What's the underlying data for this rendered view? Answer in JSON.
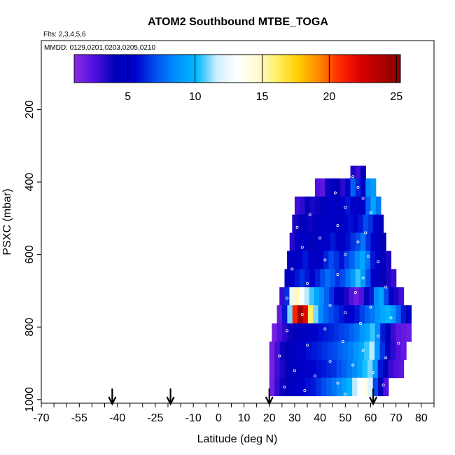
{
  "chart_data": {
    "type": "heatmap",
    "title": "ATOM2 Southbound MTBE_TOGA",
    "flights_label": "Flts: 2,3,4,5,6",
    "dates_label": "MMDD: 0129,0201,0203,0205,0210",
    "xlabel": "Latitude (deg N)",
    "ylabel": "PSXC (mbar)",
    "xlim": [
      -70,
      85
    ],
    "ylim": [
      1010,
      10
    ],
    "x_ticks": [
      -70,
      -55,
      -40,
      -25,
      -10,
      0,
      10,
      20,
      30,
      40,
      50,
      60,
      70,
      80
    ],
    "y_ticks": [
      200,
      400,
      600,
      800,
      1000
    ],
    "colorbar": {
      "min": 1,
      "max": 25.3,
      "ticks": [
        5,
        10,
        15,
        20,
        25
      ],
      "colors": [
        "#8a2be2",
        "#5010e0",
        "#0000b8",
        "#0000cc",
        "#0050f0",
        "#0090ff",
        "#00b8ff",
        "#d0eeff",
        "#ffffff",
        "#fffbd0",
        "#ffee60",
        "#ffcc00",
        "#ff8800",
        "#ff2a00",
        "#dd0000",
        "#b00000",
        "#8b0000"
      ]
    },
    "arrows_lat": [
      -42,
      -19,
      20,
      61
    ],
    "rows": [
      {
        "p": 380,
        "x0": 52,
        "x1": 58,
        "v": [
          3.5,
          2.8,
          4.2
        ]
      },
      {
        "p": 415,
        "x0": 38,
        "x1": 62,
        "v": [
          2.5,
          2.2,
          3.8,
          5.0,
          4.2,
          3.2,
          5.5,
          7.5,
          6.2,
          5.0,
          8.5,
          9.0
        ]
      },
      {
        "p": 465,
        "x0": 30,
        "x1": 64,
        "v": [
          2.8,
          3.2,
          4.0,
          3.5,
          3.8,
          4.2,
          5.0,
          4.8,
          4.5,
          5.5,
          6.0,
          5.2,
          4.8,
          5.5,
          7.5,
          9.5,
          8.0
        ]
      },
      {
        "p": 515,
        "x0": 29,
        "x1": 65,
        "v": [
          3.5,
          4.0,
          4.5,
          3.8,
          4.2,
          4.8,
          5.5,
          5.0,
          4.5,
          4.8,
          5.2,
          5.8,
          5.5,
          6.0,
          7.0,
          6.5,
          5.5,
          4.5
        ]
      },
      {
        "p": 565,
        "x0": 28,
        "x1": 66,
        "v": [
          3.2,
          4.5,
          5.0,
          4.5,
          4.0,
          4.8,
          5.2,
          5.5,
          6.0,
          5.5,
          5.0,
          5.8,
          6.5,
          7.0,
          8.0,
          6.5,
          5.5,
          4.8,
          4.0
        ]
      },
      {
        "p": 615,
        "x0": 27,
        "x1": 68,
        "v": [
          4.2,
          4.8,
          5.5,
          6.0,
          5.2,
          4.5,
          5.0,
          6.2,
          7.0,
          6.5,
          5.8,
          6.8,
          7.5,
          8.5,
          9.5,
          8.0,
          6.0,
          5.0,
          4.0,
          3.5
        ]
      },
      {
        "p": 665,
        "x0": 26,
        "x1": 70,
        "v": [
          4.5,
          5.0,
          6.0,
          6.5,
          6.0,
          5.5,
          6.2,
          7.0,
          7.8,
          7.2,
          6.5,
          7.0,
          8.0,
          9.0,
          10.5,
          9.0,
          7.0,
          5.5,
          4.5,
          4.0,
          3.5,
          3.0
        ]
      },
      {
        "p": 715,
        "x0": 24,
        "x1": 73,
        "v": [
          3.0,
          6.5,
          12.5,
          15.0,
          13.0,
          11.5,
          10.5,
          9.5,
          8.5,
          7.5,
          6.5,
          5.5,
          4.5,
          3.5,
          2.5,
          1.8,
          2.5,
          4.0,
          6.0,
          8.5,
          9.5,
          7.0,
          5.0,
          3.5,
          2.8
        ]
      },
      {
        "p": 765,
        "x0": 23,
        "x1": 76,
        "v": [
          2.0,
          6.0,
          11.0,
          21.0,
          24.5,
          22.0,
          16.0,
          11.0,
          8.5,
          7.5,
          7.0,
          6.5,
          6.0,
          5.5,
          5.5,
          6.0,
          6.8,
          7.5,
          8.0,
          8.8,
          9.5,
          10.0,
          9.0,
          7.5,
          6.0,
          4.5
        ]
      },
      {
        "p": 815,
        "x0": 21,
        "x1": 76,
        "v": [
          1.6,
          2.5,
          3.2,
          3.8,
          4.2,
          4.5,
          4.8,
          5.2,
          5.5,
          5.8,
          6.0,
          6.2,
          6.5,
          6.8,
          7.0,
          7.5,
          8.0,
          8.8,
          9.5,
          10.5,
          8.5,
          6.0,
          4.2,
          3.0,
          2.2,
          2.0,
          1.8
        ]
      },
      {
        "p": 865,
        "x0": 20,
        "x1": 74,
        "v": [
          1.6,
          2.8,
          3.8,
          4.2,
          4.8,
          5.2,
          5.5,
          5.8,
          6.0,
          6.2,
          6.5,
          6.8,
          7.0,
          7.5,
          7.8,
          8.2,
          8.8,
          9.5,
          10.5,
          11.5,
          9.0,
          6.5,
          4.5,
          3.2,
          2.5,
          2.0
        ]
      },
      {
        "p": 915,
        "x0": 20,
        "x1": 73,
        "v": [
          1.5,
          2.8,
          3.5,
          4.0,
          4.5,
          4.8,
          5.0,
          5.3,
          5.5,
          5.8,
          6.0,
          6.3,
          6.5,
          7.0,
          7.5,
          8.0,
          8.5,
          9.3,
          10.3,
          11.0,
          9.0,
          6.0,
          4.0,
          3.0,
          2.5,
          2.2
        ]
      },
      {
        "p": 965,
        "x0": 20,
        "x1": 67,
        "v": [
          1.6,
          3.0,
          3.8,
          4.2,
          4.8,
          5.2,
          5.5,
          5.8,
          6.0,
          6.5,
          7.0,
          7.5,
          8.0,
          8.5,
          9.2,
          10.0,
          11.5,
          13.0,
          14.0,
          12.0,
          7.0,
          4.0,
          2.5
        ]
      }
    ],
    "data_points": [
      {
        "lat": 53,
        "p": 385
      },
      {
        "lat": 55,
        "p": 415
      },
      {
        "lat": 46,
        "p": 430
      },
      {
        "lat": 57,
        "p": 445
      },
      {
        "lat": 50,
        "p": 470
      },
      {
        "lat": 36,
        "p": 490
      },
      {
        "lat": 60,
        "p": 485
      },
      {
        "lat": 47,
        "p": 520
      },
      {
        "lat": 31,
        "p": 525
      },
      {
        "lat": 58,
        "p": 540
      },
      {
        "lat": 40,
        "p": 555
      },
      {
        "lat": 55,
        "p": 565
      },
      {
        "lat": 33,
        "p": 580
      },
      {
        "lat": 50,
        "p": 600
      },
      {
        "lat": 59,
        "p": 605
      },
      {
        "lat": 42,
        "p": 615
      },
      {
        "lat": 63,
        "p": 620
      },
      {
        "lat": 29,
        "p": 640
      },
      {
        "lat": 47,
        "p": 655
      },
      {
        "lat": 57,
        "p": 665
      },
      {
        "lat": 35,
        "p": 680
      },
      {
        "lat": 66,
        "p": 690
      },
      {
        "lat": 54,
        "p": 705
      },
      {
        "lat": 27,
        "p": 720
      },
      {
        "lat": 44,
        "p": 740
      },
      {
        "lat": 60,
        "p": 745
      },
      {
        "lat": 50,
        "p": 760
      },
      {
        "lat": 33,
        "p": 765
      },
      {
        "lat": 68,
        "p": 775
      },
      {
        "lat": 56,
        "p": 790
      },
      {
        "lat": 42,
        "p": 805
      },
      {
        "lat": 27,
        "p": 810
      },
      {
        "lat": 63,
        "p": 825
      },
      {
        "lat": 49,
        "p": 840
      },
      {
        "lat": 71,
        "p": 845
      },
      {
        "lat": 35,
        "p": 850
      },
      {
        "lat": 57,
        "p": 865
      },
      {
        "lat": 24,
        "p": 880
      },
      {
        "lat": 66,
        "p": 885
      },
      {
        "lat": 44,
        "p": 895
      },
      {
        "lat": 53,
        "p": 905
      },
      {
        "lat": 30,
        "p": 920
      },
      {
        "lat": 61,
        "p": 925
      },
      {
        "lat": 38,
        "p": 935
      },
      {
        "lat": 58,
        "p": 945
      },
      {
        "lat": 47,
        "p": 955
      },
      {
        "lat": 65,
        "p": 960
      },
      {
        "lat": 26,
        "p": 965
      },
      {
        "lat": 34,
        "p": 975
      },
      {
        "lat": 50,
        "p": 985
      },
      {
        "lat": 56,
        "p": 990
      },
      {
        "lat": 42,
        "p": 995
      }
    ]
  }
}
